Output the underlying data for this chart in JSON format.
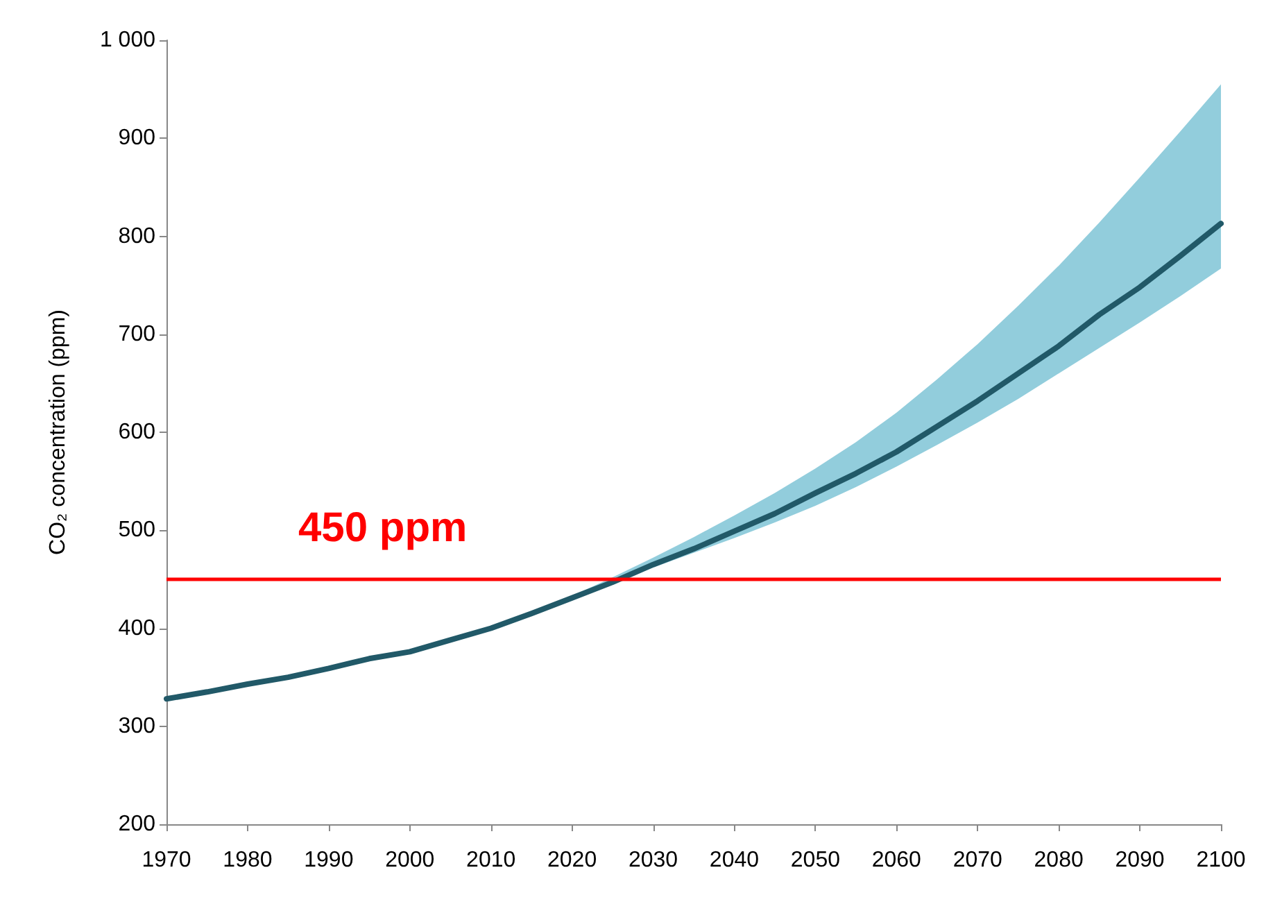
{
  "chart_data": {
    "type": "line",
    "ylabel": "CO₂ concentration (ppm)",
    "x": [
      1970,
      1975,
      1980,
      1985,
      1990,
      1995,
      2000,
      2005,
      2010,
      2015,
      2020,
      2025,
      2030,
      2035,
      2040,
      2045,
      2050,
      2055,
      2060,
      2065,
      2070,
      2075,
      2080,
      2085,
      2090,
      2095,
      2100
    ],
    "series": [
      {
        "color": "#215968",
        "values": [
          328,
          335,
          343,
          350,
          359,
          369,
          376,
          388,
          400,
          415,
          431,
          447,
          465,
          481,
          499,
          517,
          538,
          558,
          580,
          606,
          632,
          660,
          688,
          720,
          748,
          780,
          813
        ],
        "lower": [
          null,
          null,
          null,
          null,
          null,
          null,
          null,
          null,
          null,
          415,
          430,
          446,
          462,
          477,
          492,
          508,
          525,
          544,
          565,
          587,
          610,
          634,
          660,
          686,
          712,
          739,
          767
        ],
        "upper": [
          null,
          null,
          null,
          null,
          null,
          null,
          null,
          null,
          null,
          415,
          433,
          452,
          472,
          493,
          515,
          538,
          563,
          590,
          620,
          654,
          690,
          729,
          770,
          814,
          860,
          907,
          955
        ]
      }
    ],
    "xlim": [
      1970,
      2100
    ],
    "xticks": [
      1970,
      1980,
      1990,
      2000,
      2010,
      2020,
      2030,
      2040,
      2050,
      2060,
      2070,
      2080,
      2090,
      2100
    ],
    "ylim": [
      200,
      1000
    ],
    "yticks": [
      200,
      300,
      400,
      500,
      600,
      700,
      800,
      900,
      {
        "value": 1000,
        "label": "1 000"
      }
    ],
    "ref_lines": [
      {
        "axis": "y",
        "value": 450,
        "label": "450 ppm",
        "color": "#ff0000"
      }
    ],
    "grid": false,
    "marker": "none",
    "line_style": "solid"
  }
}
